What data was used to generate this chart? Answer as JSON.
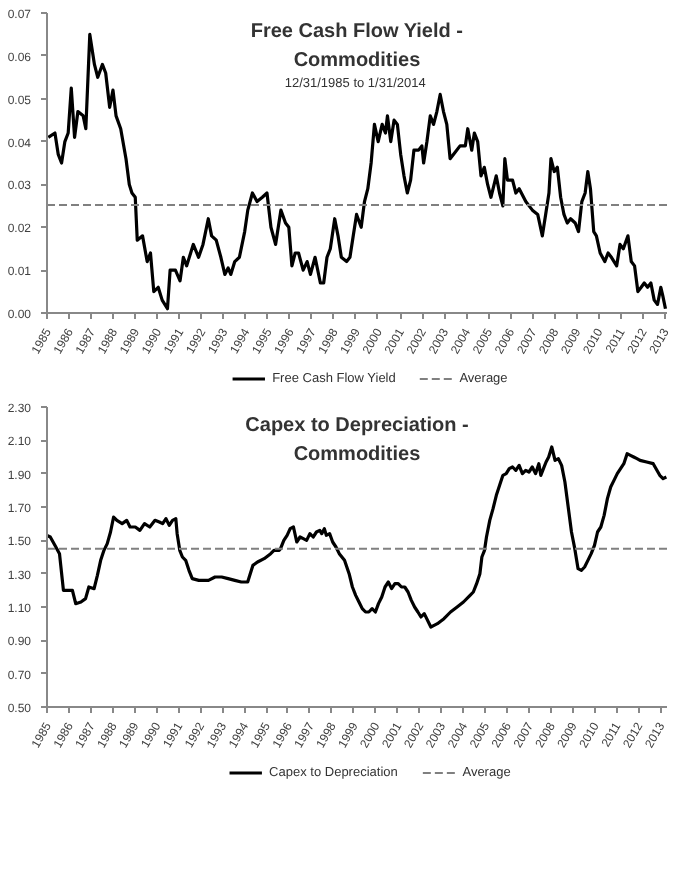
{
  "chart_data": [
    {
      "type": "line",
      "title": "Free Cash Flow Yield - Commodities",
      "subtitle": "12/31/1985  to 1/31/2014",
      "xlim": [
        1985,
        2013.1
      ],
      "xticks": [
        1985,
        1986,
        1987,
        1988,
        1989,
        1990,
        1991,
        1992,
        1993,
        1994,
        1995,
        1996,
        1997,
        1998,
        1999,
        2000,
        2001,
        2002,
        2003,
        2004,
        2005,
        2006,
        2007,
        2008,
        2009,
        2010,
        2011,
        2012,
        2013
      ],
      "ylim": [
        0,
        0.07
      ],
      "yticks": [
        {
          "value": 0,
          "label": "0.00"
        },
        {
          "value": 0.01,
          "label": "0.01"
        },
        {
          "value": 0.02,
          "label": "0.02"
        },
        {
          "value": 0.03,
          "label": "0.03"
        },
        {
          "value": 0.04,
          "label": "0.04"
        },
        {
          "value": 0.05,
          "label": "0.05"
        },
        {
          "value": 0.06,
          "label": "0.06"
        },
        {
          "value": 0.07,
          "label": "0.07"
        }
      ],
      "grid": false,
      "legend": "bottom",
      "line_style": "solid",
      "series": [
        {
          "name": "Free Cash Flow Yield",
          "color": "#000000",
          "x": [
            1985.06,
            1985.36,
            1985.51,
            1985.66,
            1985.81,
            1985.96,
            1986.1,
            1986.25,
            1986.4,
            1986.64,
            1986.76,
            1986.94,
            1987.15,
            1987.3,
            1987.51,
            1987.66,
            1987.84,
            1987.99,
            1988.13,
            1988.34,
            1988.58,
            1988.73,
            1988.85,
            1989.0,
            1989.09,
            1989.33,
            1989.54,
            1989.69,
            1989.84,
            1990.04,
            1990.22,
            1990.46,
            1990.58,
            1990.82,
            1991.03,
            1991.18,
            1991.33,
            1991.63,
            1991.87,
            1992.07,
            1992.31,
            1992.46,
            1992.67,
            1992.88,
            1993.06,
            1993.21,
            1993.33,
            1993.51,
            1993.72,
            1993.96,
            1994.1,
            1994.31,
            1994.52,
            1994.76,
            1994.97,
            1995.15,
            1995.36,
            1995.6,
            1995.81,
            1995.96,
            1996.1,
            1996.25,
            1996.4,
            1996.61,
            1996.79,
            1996.94,
            1997.15,
            1997.39,
            1997.54,
            1997.69,
            1997.84,
            1998.04,
            1998.19,
            1998.34,
            1998.58,
            1998.73,
            1998.88,
            1999.03,
            1999.24,
            1999.39,
            1999.54,
            1999.69,
            1999.84,
            2000.01,
            2000.19,
            2000.34,
            2000.43,
            2000.58,
            2000.73,
            2000.88,
            2001.03,
            2001.18,
            2001.33,
            2001.48,
            2001.63,
            2001.84,
            2001.99,
            2002.07,
            2002.22,
            2002.37,
            2002.52,
            2002.67,
            2002.82,
            2002.97,
            2003.12,
            2003.27,
            2003.42,
            2003.72,
            2003.96,
            2004.07,
            2004.25,
            2004.37,
            2004.52,
            2004.67,
            2004.82,
            2004.97,
            2005.12,
            2005.36,
            2005.51,
            2005.66,
            2005.75,
            2005.87,
            2006.1,
            2006.25,
            2006.4,
            2006.7,
            2006.85,
            2007.0,
            2007.24,
            2007.45,
            2007.6,
            2007.75,
            2007.84,
            2007.99,
            2008.13,
            2008.28,
            2008.43,
            2008.58,
            2008.73,
            2008.94,
            2009.09,
            2009.24,
            2009.39,
            2009.51,
            2009.63,
            2009.78,
            2009.9,
            2010.07,
            2010.28,
            2010.43,
            2010.58,
            2010.82,
            2010.97,
            2011.12,
            2011.33,
            2011.48,
            2011.63,
            2011.78,
            2011.93,
            2012.07,
            2012.22,
            2012.37,
            2012.52,
            2012.67,
            2012.82,
            2012.91,
            2013.03
          ],
          "values": [
            0.041,
            0.042,
            0.037,
            0.035,
            0.04,
            0.042,
            0.0525,
            0.041,
            0.047,
            0.046,
            0.043,
            0.065,
            0.058,
            0.055,
            0.058,
            0.056,
            0.048,
            0.052,
            0.046,
            0.043,
            0.036,
            0.03,
            0.028,
            0.027,
            0.017,
            0.018,
            0.012,
            0.014,
            0.005,
            0.006,
            0.003,
            0.001,
            0.01,
            0.01,
            0.0075,
            0.013,
            0.011,
            0.016,
            0.013,
            0.016,
            0.022,
            0.018,
            0.017,
            0.013,
            0.009,
            0.0105,
            0.009,
            0.012,
            0.013,
            0.019,
            0.024,
            0.028,
            0.026,
            0.027,
            0.028,
            0.02,
            0.016,
            0.024,
            0.021,
            0.02,
            0.011,
            0.014,
            0.014,
            0.01,
            0.012,
            0.009,
            0.013,
            0.007,
            0.007,
            0.013,
            0.015,
            0.022,
            0.018,
            0.013,
            0.012,
            0.013,
            0.018,
            0.023,
            0.02,
            0.026,
            0.029,
            0.035,
            0.044,
            0.04,
            0.044,
            0.042,
            0.046,
            0.04,
            0.045,
            0.044,
            0.037,
            0.032,
            0.028,
            0.031,
            0.038,
            0.038,
            0.039,
            0.035,
            0.04,
            0.046,
            0.044,
            0.047,
            0.051,
            0.047,
            0.044,
            0.036,
            0.037,
            0.039,
            0.039,
            0.043,
            0.038,
            0.042,
            0.04,
            0.032,
            0.034,
            0.03,
            0.027,
            0.032,
            0.028,
            0.025,
            0.036,
            0.031,
            0.031,
            0.028,
            0.029,
            0.026,
            0.025,
            0.024,
            0.023,
            0.018,
            0.023,
            0.028,
            0.036,
            0.033,
            0.034,
            0.027,
            0.023,
            0.021,
            0.022,
            0.021,
            0.019,
            0.026,
            0.028,
            0.033,
            0.029,
            0.019,
            0.018,
            0.014,
            0.012,
            0.014,
            0.013,
            0.011,
            0.016,
            0.015,
            0.018,
            0.012,
            0.011,
            0.005,
            0.006,
            0.007,
            0.006,
            0.007,
            0.003,
            0.002,
            0.006,
            0.004,
            0.001
          ]
        }
      ],
      "ref_lines": [
        {
          "axis": "y",
          "value": 0.0252,
          "label": "Average",
          "color": "#808080",
          "line_style": "dashed"
        }
      ]
    },
    {
      "type": "line",
      "title": "Capex to Depreciation - Commodities",
      "xlim": [
        1985,
        2013.3
      ],
      "xticks": [
        1985,
        1986,
        1987,
        1988,
        1989,
        1990,
        1991,
        1992,
        1993,
        1994,
        1995,
        1996,
        1997,
        1998,
        1999,
        2000,
        2001,
        2002,
        2003,
        2004,
        2005,
        2006,
        2007,
        2008,
        2009,
        2010,
        2011,
        2012,
        2013
      ],
      "ylim": [
        0.5,
        2.3
      ],
      "yticks": [
        {
          "value": 0.5,
          "label": "0.50"
        },
        {
          "value": 0.7,
          "label": "0.70"
        },
        {
          "value": 0.9,
          "label": "0.90"
        },
        {
          "value": 1.1,
          "label": "1.10"
        },
        {
          "value": 1.3,
          "label": "1.30"
        },
        {
          "value": 1.5,
          "label": "1.50"
        },
        {
          "value": 1.7,
          "label": "1.70"
        },
        {
          "value": 1.9,
          "label": "1.90"
        },
        {
          "value": 2.1,
          "label": "2.10"
        },
        {
          "value": 2.3,
          "label": "2.30"
        }
      ],
      "grid": false,
      "legend": "bottom",
      "line_style": "solid",
      "series": [
        {
          "name": "Capex to Depreciation",
          "color": "#000000",
          "x": [
            1985.0,
            1985.15,
            1985.36,
            1985.57,
            1985.75,
            1985.96,
            1986.16,
            1986.31,
            1986.55,
            1986.76,
            1986.91,
            1987.15,
            1987.3,
            1987.45,
            1987.6,
            1987.75,
            1987.9,
            1988.04,
            1988.19,
            1988.43,
            1988.64,
            1988.79,
            1989.03,
            1989.24,
            1989.45,
            1989.69,
            1989.93,
            1990.13,
            1990.28,
            1990.43,
            1990.58,
            1990.73,
            1990.88,
            1990.94,
            1991.06,
            1991.18,
            1991.33,
            1991.48,
            1991.63,
            1991.93,
            1992.37,
            1992.67,
            1992.97,
            1993.27,
            1993.57,
            1993.87,
            1994.16,
            1994.4,
            1994.61,
            1994.91,
            1995.21,
            1995.36,
            1995.6,
            1995.66,
            1995.81,
            1995.96,
            1996.1,
            1996.25,
            1996.4,
            1996.55,
            1996.7,
            1996.85,
            1997.0,
            1997.15,
            1997.3,
            1997.45,
            1997.54,
            1997.66,
            1997.75,
            1997.9,
            1998.04,
            1998.19,
            1998.34,
            1998.58,
            1998.79,
            1998.94,
            1999.09,
            1999.24,
            1999.39,
            1999.54,
            1999.69,
            1999.84,
            1999.99,
            2000.13,
            2000.28,
            2000.43,
            2000.58,
            2000.73,
            2000.88,
            2001.03,
            2001.18,
            2001.33,
            2001.48,
            2001.63,
            2001.78,
            2001.93,
            2002.07,
            2002.22,
            2002.52,
            2002.67,
            2002.82,
            2003.12,
            2003.42,
            2003.72,
            2004.01,
            2004.31,
            2004.46,
            2004.61,
            2004.76,
            2004.85,
            2004.97,
            2005.06,
            2005.21,
            2005.36,
            2005.51,
            2005.66,
            2005.81,
            2005.96,
            2006.1,
            2006.25,
            2006.4,
            2006.55,
            2006.7,
            2006.85,
            2007.0,
            2007.15,
            2007.3,
            2007.45,
            2007.54,
            2007.66,
            2007.78,
            2007.9,
            2008.04,
            2008.19,
            2008.34,
            2008.49,
            2008.64,
            2008.79,
            2008.94,
            2009.09,
            2009.24,
            2009.39,
            2009.54,
            2009.69,
            2009.84,
            2009.99,
            2010.13,
            2010.28,
            2010.43,
            2010.58,
            2010.73,
            2010.88,
            2011.03,
            2011.18,
            2011.33,
            2011.48,
            2011.63,
            2011.78,
            2011.93,
            2012.07,
            2012.37,
            2012.67,
            2012.97,
            2013.12,
            2013.27
          ],
          "values": [
            1.53,
            1.52,
            1.47,
            1.42,
            1.2,
            1.2,
            1.2,
            1.12,
            1.13,
            1.15,
            1.22,
            1.21,
            1.29,
            1.38,
            1.44,
            1.48,
            1.55,
            1.64,
            1.62,
            1.6,
            1.62,
            1.58,
            1.58,
            1.56,
            1.6,
            1.58,
            1.62,
            1.61,
            1.6,
            1.63,
            1.59,
            1.62,
            1.63,
            1.54,
            1.44,
            1.4,
            1.38,
            1.32,
            1.27,
            1.26,
            1.26,
            1.28,
            1.28,
            1.27,
            1.26,
            1.25,
            1.25,
            1.35,
            1.37,
            1.39,
            1.42,
            1.44,
            1.44,
            1.45,
            1.5,
            1.53,
            1.57,
            1.58,
            1.49,
            1.52,
            1.51,
            1.5,
            1.54,
            1.52,
            1.55,
            1.56,
            1.54,
            1.57,
            1.53,
            1.54,
            1.49,
            1.46,
            1.42,
            1.38,
            1.3,
            1.22,
            1.17,
            1.13,
            1.09,
            1.07,
            1.07,
            1.09,
            1.07,
            1.12,
            1.16,
            1.22,
            1.25,
            1.21,
            1.24,
            1.24,
            1.22,
            1.22,
            1.19,
            1.14,
            1.1,
            1.07,
            1.04,
            1.06,
            0.98,
            0.99,
            1.0,
            1.03,
            1.07,
            1.1,
            1.13,
            1.17,
            1.19,
            1.24,
            1.3,
            1.4,
            1.44,
            1.52,
            1.62,
            1.69,
            1.77,
            1.83,
            1.89,
            1.9,
            1.93,
            1.94,
            1.92,
            1.95,
            1.9,
            1.92,
            1.91,
            1.94,
            1.9,
            1.96,
            1.89,
            1.93,
            1.97,
            2.0,
            2.06,
            1.98,
            1.99,
            1.95,
            1.85,
            1.7,
            1.55,
            1.45,
            1.33,
            1.32,
            1.34,
            1.38,
            1.42,
            1.47,
            1.55,
            1.58,
            1.65,
            1.75,
            1.82,
            1.86,
            1.9,
            1.93,
            1.96,
            2.02,
            2.01,
            2.0,
            1.99,
            1.98,
            1.97,
            1.96,
            1.89,
            1.87,
            1.88
          ]
        }
      ],
      "ref_lines": [
        {
          "axis": "y",
          "value": 1.45,
          "label": "Average",
          "color": "#808080",
          "line_style": "dashed"
        }
      ]
    }
  ]
}
